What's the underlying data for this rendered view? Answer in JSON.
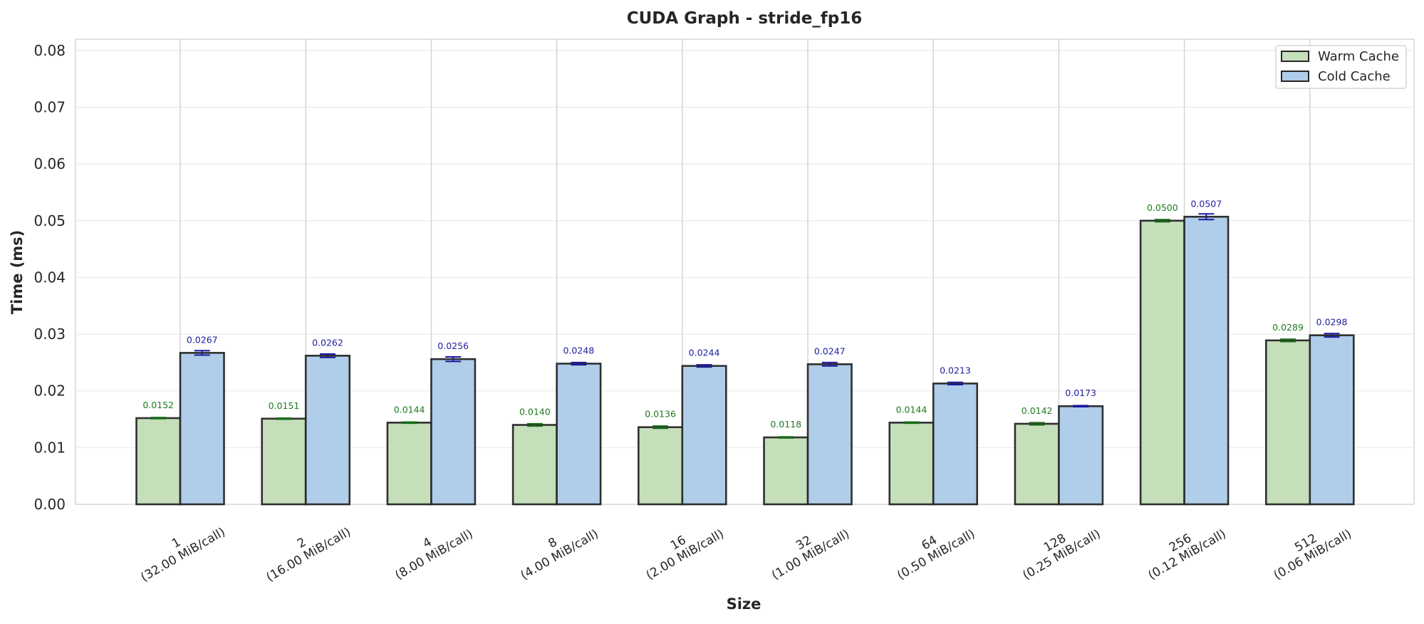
{
  "chart_data": {
    "type": "bar",
    "title": "CUDA Graph - stride_fp16",
    "xlabel": "Size",
    "ylabel": "Time (ms)",
    "ylim": [
      0,
      0.082
    ],
    "yticks": [
      "0.00",
      "0.01",
      "0.02",
      "0.03",
      "0.04",
      "0.05",
      "0.06",
      "0.07",
      "0.08"
    ],
    "ytick_values": [
      0,
      0.01,
      0.02,
      0.03,
      0.04,
      0.05,
      0.06,
      0.07,
      0.08
    ],
    "grid": true,
    "legend_position": "top-right",
    "categories": [
      {
        "size": "1",
        "detail": "(32.00 MiB/call)"
      },
      {
        "size": "2",
        "detail": "(16.00 MiB/call)"
      },
      {
        "size": "4",
        "detail": "(8.00 MiB/call)"
      },
      {
        "size": "8",
        "detail": "(4.00 MiB/call)"
      },
      {
        "size": "16",
        "detail": "(2.00 MiB/call)"
      },
      {
        "size": "32",
        "detail": "(1.00 MiB/call)"
      },
      {
        "size": "64",
        "detail": "(0.50 MiB/call)"
      },
      {
        "size": "128",
        "detail": "(0.25 MiB/call)"
      },
      {
        "size": "256",
        "detail": "(0.12 MiB/call)"
      },
      {
        "size": "512",
        "detail": "(0.06 MiB/call)"
      }
    ],
    "series": [
      {
        "name": "Warm Cache",
        "color": "#c4dfba",
        "label_color": "#1f7a1f",
        "error_color": "#1a6b1a",
        "values": [
          0.0152,
          0.0151,
          0.0144,
          0.014,
          0.0136,
          0.0118,
          0.0144,
          0.0142,
          0.05,
          0.0289
        ],
        "labels": [
          "0.0152",
          "0.0151",
          "0.0144",
          "0.0140",
          "0.0136",
          "0.0118",
          "0.0144",
          "0.0142",
          "0.0500",
          "0.0289"
        ],
        "errors": [
          0.0001,
          0.0001,
          0.0001,
          0.0002,
          0.0002,
          0.0001,
          0.0001,
          0.0002,
          0.0002,
          0.0002
        ]
      },
      {
        "name": "Cold Cache",
        "color": "#b0cde9",
        "label_color": "#2020a0",
        "error_color": "#1a1aa0",
        "values": [
          0.0267,
          0.0262,
          0.0256,
          0.0248,
          0.0244,
          0.0247,
          0.0213,
          0.0173,
          0.0507,
          0.0298
        ],
        "labels": [
          "0.0267",
          "0.0262",
          "0.0256",
          "0.0248",
          "0.0244",
          "0.0247",
          "0.0213",
          "0.0173",
          "0.0507",
          "0.0298"
        ],
        "errors": [
          0.0004,
          0.0003,
          0.0004,
          0.0002,
          0.0002,
          0.0003,
          0.0002,
          0.0001,
          0.0005,
          0.0003
        ]
      }
    ]
  }
}
